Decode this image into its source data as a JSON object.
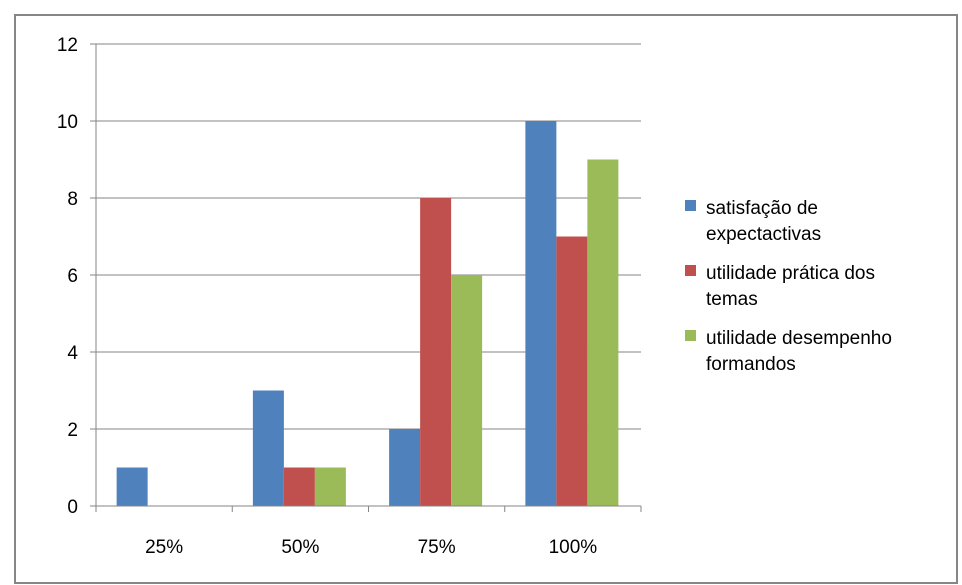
{
  "chart_data": {
    "type": "bar",
    "categories": [
      "25%",
      "50%",
      "75%",
      "100%"
    ],
    "series": [
      {
        "name": "satisfação de expectactivas",
        "values": [
          1,
          3,
          2,
          10
        ],
        "color": "#4F81BD"
      },
      {
        "name": "utilidade prática dos temas",
        "values": [
          0,
          1,
          8,
          7
        ],
        "color": "#C0504D"
      },
      {
        "name": "utilidade desempenho formandos",
        "values": [
          0,
          1,
          6,
          9
        ],
        "color": "#9BBB59"
      }
    ],
    "legend_lines": [
      [
        "satisfação de",
        "expectactivas"
      ],
      [
        "utilidade prática dos",
        "temas"
      ],
      [
        "utilidade desempenho",
        "formandos"
      ]
    ],
    "yticks": [
      0,
      2,
      4,
      6,
      8,
      10,
      12
    ],
    "ylim": [
      0,
      12
    ],
    "grid": true,
    "legend_position": "right",
    "title": "",
    "xlabel": "",
    "ylabel": ""
  }
}
